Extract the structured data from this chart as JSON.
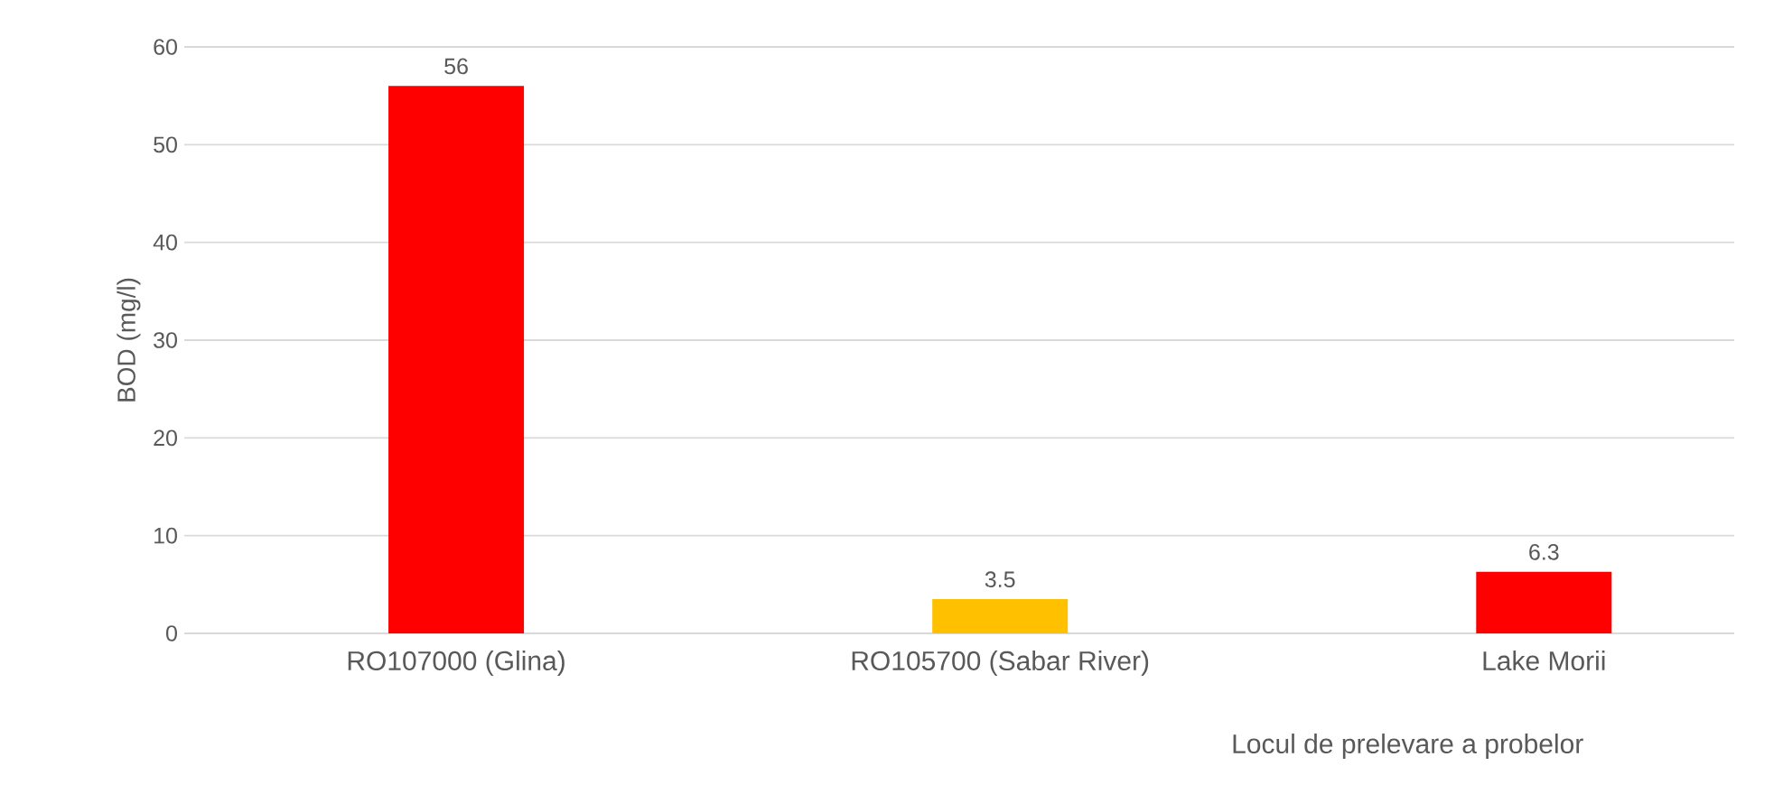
{
  "chart_data": {
    "type": "bar",
    "xlabel": "Locul de prelevare a probelor",
    "ylabel": "BOD (mg/l)",
    "categories": [
      "RO107000 (Glina)",
      "RO105700 (Sabar River)",
      "Lake Morii"
    ],
    "values": [
      56,
      3.5,
      6.3
    ],
    "colors": [
      "#ff0000",
      "#ffc000",
      "#ff0000"
    ],
    "ylim": [
      0,
      60
    ],
    "yticks": [
      0,
      10,
      20,
      30,
      40,
      50,
      60
    ],
    "grid": "y",
    "data_labels": true
  }
}
